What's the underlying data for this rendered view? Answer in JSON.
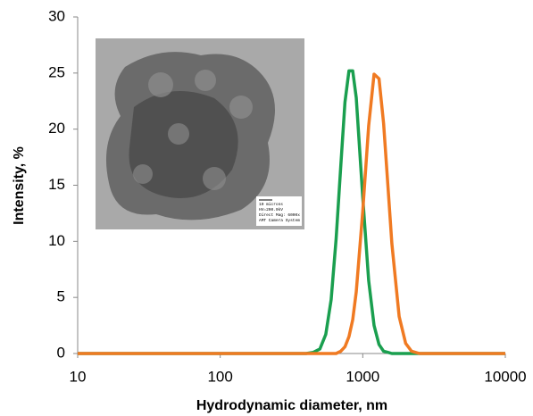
{
  "chart_data": {
    "type": "line",
    "x_label": "Hydrodynamic diameter, nm",
    "y_label": "Intensity, %",
    "x": [
      10,
      400,
      450,
      500,
      550,
      600,
      650,
      700,
      750,
      800,
      850,
      900,
      1000,
      1100,
      1200,
      1300,
      1400,
      1500,
      1600,
      1800,
      2000,
      2200,
      2500,
      10000
    ],
    "series": [
      {
        "color": "#1a9f4f",
        "values": [
          0,
          0,
          0.1,
          0.4,
          1.7,
          4.8,
          10.2,
          16.6,
          22.4,
          25.2,
          25.2,
          22.8,
          13.9,
          6.5,
          2.5,
          0.8,
          0.2,
          0.1,
          0,
          0,
          0,
          0,
          0,
          0
        ]
      },
      {
        "color": "#f07a22",
        "values": [
          0,
          0,
          0,
          0,
          0,
          0,
          0,
          0.2,
          0.6,
          1.5,
          3.0,
          5.5,
          12.7,
          20.3,
          24.9,
          24.5,
          20.5,
          15.0,
          9.8,
          3.3,
          0.9,
          0.2,
          0,
          0
        ]
      }
    ],
    "xscale": "log",
    "xlim": [
      10,
      10000
    ],
    "xticks": [
      10,
      100,
      1000,
      10000
    ],
    "ylim": [
      0,
      30
    ],
    "yticks": [
      0,
      5,
      10,
      15,
      20,
      25,
      30
    ],
    "grid": false,
    "inset_labels": [
      "10 microns",
      "HV=200.0kV",
      "Direct Mag: 6000x",
      "AMT Camera System"
    ]
  }
}
